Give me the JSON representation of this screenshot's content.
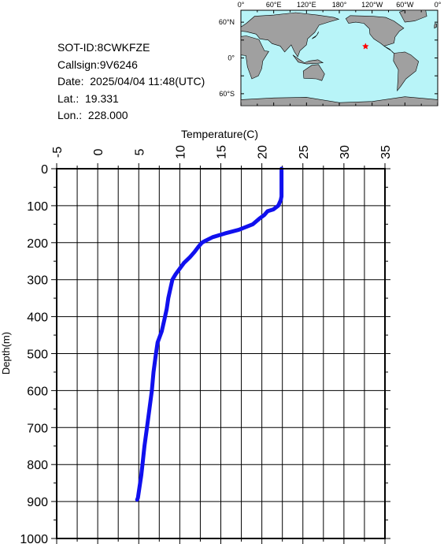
{
  "info": {
    "sot_id": "SOT-ID:8CWKFZE",
    "callsign": "Callsign:9V6246",
    "date": "Date:  2025/04/04 11:48(UTC)",
    "lat": "Lat.:  19.331",
    "lon": "Lon.:  228.000"
  },
  "map": {
    "lon_labels": [
      "0°",
      "60°E",
      "120°E",
      "180°",
      "120°W",
      "60°W",
      "0°"
    ],
    "lat_labels": [
      "60°N",
      "0°",
      "60°S"
    ],
    "ocean_color": "#b8f4f8",
    "land_color": "#a0a0a0",
    "marker": {
      "lon": 228.0,
      "lat": 19.331,
      "symbol": "star",
      "color": "#ff0000"
    }
  },
  "chart_data": {
    "type": "line",
    "xlabel": "Temperature(C)",
    "ylabel": "Depth(m)",
    "xlim": [
      -5,
      35
    ],
    "ylim": [
      0,
      1000
    ],
    "y_inverted": true,
    "x_axis_position": "top",
    "xticks": [
      -5,
      0,
      5,
      10,
      15,
      20,
      25,
      30,
      35
    ],
    "yticks": [
      0,
      100,
      200,
      300,
      400,
      500,
      600,
      700,
      800,
      900,
      1000
    ],
    "grid": true,
    "line_color": "#1010ee",
    "series": [
      {
        "x": [
          22.4,
          22.4,
          22.4,
          22.3,
          22.0,
          21.4,
          20.7,
          20.3,
          19.7,
          18.9,
          17.2,
          15.5,
          14.0,
          13.1,
          12.7,
          12.3,
          11.8,
          11.2,
          10.5,
          10.0,
          9.5,
          9.1,
          8.9,
          8.6,
          8.4,
          8.1,
          7.8,
          7.3,
          7.1,
          6.8,
          6.6,
          6.3,
          6.0,
          5.7,
          5.5,
          5.3,
          5.1,
          4.9,
          4.8
        ],
        "y": [
          0,
          40,
          75,
          85,
          100,
          110,
          115,
          125,
          135,
          150,
          165,
          175,
          185,
          195,
          200,
          210,
          225,
          240,
          255,
          270,
          285,
          300,
          320,
          350,
          380,
          410,
          440,
          470,
          500,
          550,
          600,
          650,
          700,
          750,
          790,
          830,
          860,
          890,
          895
        ]
      }
    ]
  }
}
